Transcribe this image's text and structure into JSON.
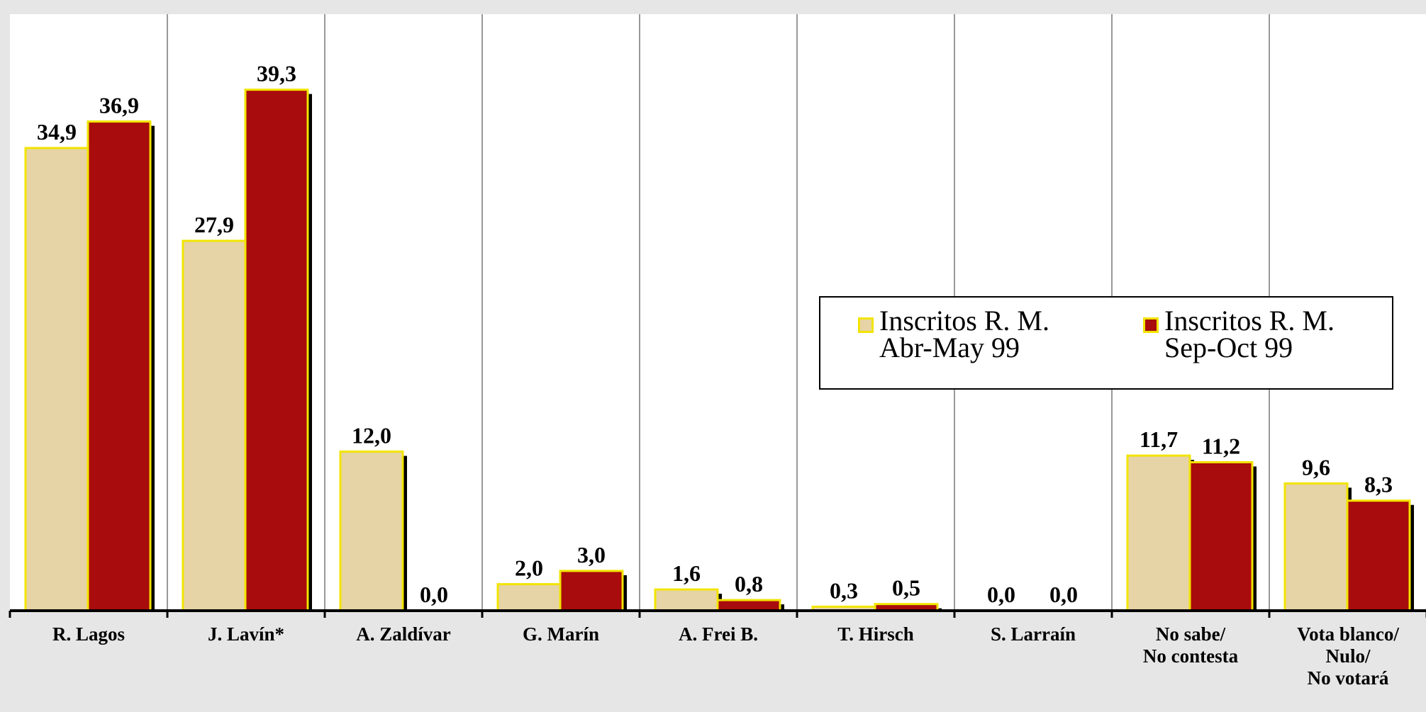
{
  "chart_data": {
    "type": "bar",
    "categories": [
      "R. Lagos",
      "J. Lavín*",
      "A. Zaldívar",
      "G. Marín",
      "A. Frei B.",
      "T. Hirsch",
      "S. Larraín",
      "No sabe/\nNo contesta",
      "Vota blanco/\nNulo/\nNo votará"
    ],
    "series": [
      {
        "name": "Inscritos R. M.\nAbr-May 99",
        "color": "#e6d3a6",
        "values": [
          34.9,
          27.9,
          12.0,
          2.0,
          1.6,
          0.3,
          0.0,
          11.7,
          9.6
        ],
        "value_labels": [
          "34,9",
          "27,9",
          "12,0",
          "2,0",
          "1,6",
          "0,3",
          "0,0",
          "11,7",
          "9,6"
        ]
      },
      {
        "name": "Inscritos R. M.\nSep-Oct 99",
        "color": "#a80c0c",
        "values": [
          36.9,
          39.3,
          0.0,
          3.0,
          0.8,
          0.5,
          0.0,
          11.2,
          8.3
        ],
        "value_labels": [
          "36,9",
          "39,3",
          "0,0",
          "3,0",
          "0,8",
          "0,5",
          "0,0",
          "11,2",
          "8,3"
        ]
      }
    ],
    "ylim": [
      0,
      45
    ],
    "grid": true,
    "legend": "right"
  }
}
